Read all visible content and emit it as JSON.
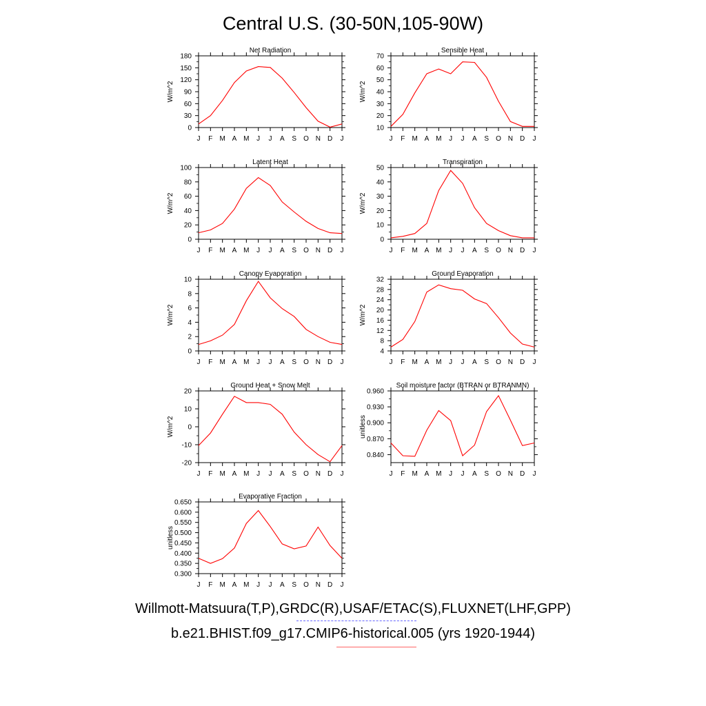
{
  "title": "Central U.S. (30-50N,105-90W)",
  "legend": {
    "observations_label": "Willmott-Matsuura(T,P),GRDC(R),USAF/ETAC(S),FLUXNET(LHF,GPP)",
    "model_label": "b.e21.BHIST.f09_g17.CMIP6-historical.005 (yrs 1920-1944)",
    "observations_color": "#6464ff",
    "model_color": "#ff6464"
  },
  "colors": {
    "series_line": "#ff0000",
    "axis": "#000000"
  },
  "month_labels": [
    "J",
    "F",
    "M",
    "A",
    "M",
    "J",
    "J",
    "A",
    "S",
    "O",
    "N",
    "D",
    "J"
  ],
  "chart_data": [
    {
      "type": "line",
      "title": "Net Radiation",
      "ylabel": "W/m^2",
      "ylim": [
        0,
        180
      ],
      "yticks": [
        "0",
        "30",
        "60",
        "90",
        "120",
        "150",
        "180"
      ],
      "values": [
        9,
        30,
        68,
        113,
        142,
        153,
        151,
        124,
        88,
        50,
        16,
        1,
        9
      ]
    },
    {
      "type": "line",
      "title": "Sensible Heat",
      "ylabel": "W/m^2",
      "ylim": [
        10,
        70
      ],
      "yticks": [
        "10",
        "20",
        "30",
        "40",
        "50",
        "60",
        "70"
      ],
      "values": [
        11,
        21,
        39,
        55,
        59,
        55,
        65,
        64.5,
        52,
        32,
        15,
        11,
        11
      ]
    },
    {
      "type": "line",
      "title": "Latent Heat",
      "ylabel": "W/m^2",
      "ylim": [
        0,
        100
      ],
      "yticks": [
        "0",
        "20",
        "40",
        "60",
        "80",
        "100"
      ],
      "values": [
        9,
        13,
        22,
        42,
        71,
        86,
        75,
        52,
        38,
        25,
        15,
        9,
        8
      ]
    },
    {
      "type": "line",
      "title": "Transpiration",
      "ylabel": "W/m^2",
      "ylim": [
        0,
        50
      ],
      "yticks": [
        "0",
        "10",
        "20",
        "30",
        "40",
        "50"
      ],
      "values": [
        1,
        2,
        4,
        11,
        34,
        48,
        39,
        22,
        11,
        6,
        2.5,
        1,
        1
      ]
    },
    {
      "type": "line",
      "title": "Canopy Evaporation",
      "ylabel": "W/m^2",
      "ylim": [
        0,
        10
      ],
      "yticks": [
        "0",
        "2",
        "4",
        "6",
        "8",
        "10"
      ],
      "values": [
        0.9,
        1.4,
        2.2,
        3.7,
        7.0,
        9.7,
        7.4,
        5.9,
        4.8,
        3.0,
        2.0,
        1.2,
        0.9
      ]
    },
    {
      "type": "line",
      "title": "Ground Evaporation",
      "ylabel": "W/m^2",
      "ylim": [
        4,
        32
      ],
      "yticks": [
        "4",
        "8",
        "12",
        "16",
        "20",
        "24",
        "28",
        "32"
      ],
      "values": [
        5.5,
        8.5,
        15.5,
        27,
        29.8,
        28.3,
        27.7,
        24.3,
        22.5,
        17,
        11,
        6.7,
        5.5
      ]
    },
    {
      "type": "line",
      "title": "Ground Heat + Snow Melt",
      "ylabel": "W/m^2",
      "ylim": [
        -20,
        20
      ],
      "yticks": [
        "-20",
        "-10",
        "0",
        "10",
        "20"
      ],
      "values": [
        -10.5,
        -3.5,
        7,
        17,
        13.5,
        13.5,
        12.5,
        7,
        -3,
        -10,
        -15.5,
        -19.5,
        -10.5
      ]
    },
    {
      "type": "line",
      "title": "Soil moisture factor (BTRAN or BTRANMN)",
      "ylabel": "unitless",
      "ylim": [
        0.825,
        0.96
      ],
      "yticks": [
        "0.840",
        "0.870",
        "0.900",
        "0.930",
        "0.960"
      ],
      "values": [
        0.862,
        0.838,
        0.837,
        0.886,
        0.923,
        0.904,
        0.838,
        0.858,
        0.921,
        0.951,
        0.905,
        0.857,
        0.862
      ]
    },
    {
      "type": "line",
      "title": "Evaporative Fraction",
      "ylabel": "unitless",
      "ylim": [
        0.3,
        0.65
      ],
      "yticks": [
        "0.300",
        "0.350",
        "0.400",
        "0.450",
        "0.500",
        "0.550",
        "0.600",
        "0.650"
      ],
      "values": [
        0.375,
        0.35,
        0.373,
        0.425,
        0.545,
        0.608,
        0.53,
        0.445,
        0.421,
        0.435,
        0.527,
        0.437,
        0.375
      ]
    }
  ]
}
